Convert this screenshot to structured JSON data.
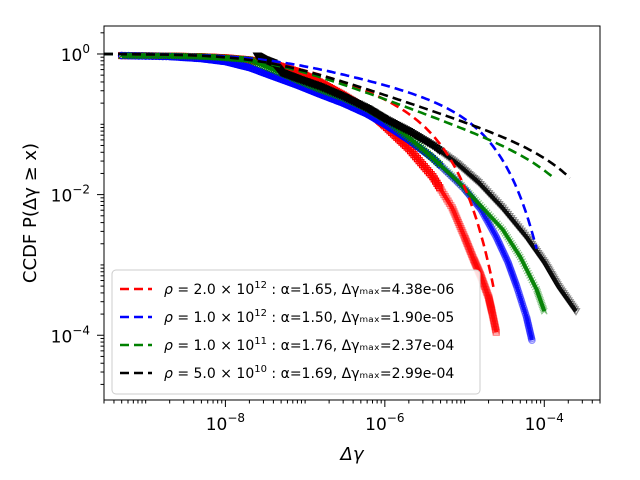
{
  "chart_data": {
    "type": "scatter",
    "title": "",
    "xlabel": "Δγ",
    "ylabel": "CCDF  P(Δγ ≥ x)",
    "xscale": "log",
    "yscale": "log",
    "xlim": [
      3e-10,
      0.0005
    ],
    "ylim": [
      1.2e-05,
      2.5
    ],
    "xticks": [
      {
        "value": 1e-08,
        "base": "10",
        "exp": "−8"
      },
      {
        "value": 1e-06,
        "base": "10",
        "exp": "−6"
      },
      {
        "value": 0.0001,
        "base": "10",
        "exp": "−4"
      }
    ],
    "yticks": [
      {
        "value": 1,
        "label": "10",
        "exp": "0"
      },
      {
        "value": 0.01,
        "label": "10",
        "exp": "−2"
      },
      {
        "value": 0.0001,
        "label": "10",
        "exp": "−4"
      }
    ],
    "legend_position": "lower-left",
    "series": [
      {
        "name": "red",
        "color": "#ff0000",
        "marker": "square",
        "legend": {
          "rho_mant": "2.0",
          "rho_exp": "12",
          "alpha": "α=1.65",
          "dmax": "Δγₘₐₓ=4.38e-06"
        },
        "fit": {
          "alpha": 1.65,
          "xmax": 4.38e-06,
          "xend": 2.3e-05
        },
        "points": [
          [
            5e-10,
            0.95
          ],
          [
            2e-09,
            0.93
          ],
          [
            5e-09,
            0.91
          ],
          [
            1e-08,
            0.88
          ],
          [
            2e-08,
            0.82
          ],
          [
            4e-08,
            0.72
          ],
          [
            8e-08,
            0.56
          ],
          [
            1.5e-07,
            0.4
          ],
          [
            3e-07,
            0.26
          ],
          [
            6e-07,
            0.16
          ],
          [
            1e-06,
            0.095
          ],
          [
            2e-06,
            0.045
          ],
          [
            4e-06,
            0.018
          ],
          [
            7e-06,
            0.0065
          ],
          [
            1e-05,
            0.0025
          ],
          [
            1.3e-05,
            0.0012
          ],
          [
            1.6e-05,
            0.0007
          ],
          [
            2e-05,
            0.00035
          ],
          [
            2.2e-05,
            0.00022
          ],
          [
            2.5e-05,
            0.00011
          ]
        ]
      },
      {
        "name": "blue",
        "color": "#0000ff",
        "marker": "circle",
        "legend": {
          "rho_mant": "1.0",
          "rho_exp": "12",
          "alpha": "α=1.50",
          "dmax": "Δγₘₐₓ=1.90e-05"
        },
        "fit": {
          "alpha": 1.5,
          "xmax": 1.9e-05,
          "xend": 8e-05
        },
        "points": [
          [
            5e-10,
            0.95
          ],
          [
            2e-09,
            0.92
          ],
          [
            5e-09,
            0.86
          ],
          [
            1e-08,
            0.78
          ],
          [
            2e-08,
            0.64
          ],
          [
            4e-08,
            0.48
          ],
          [
            8e-08,
            0.36
          ],
          [
            1.5e-07,
            0.27
          ],
          [
            3e-07,
            0.2
          ],
          [
            6e-07,
            0.14
          ],
          [
            1e-06,
            0.1
          ],
          [
            2e-06,
            0.06
          ],
          [
            4e-06,
            0.033
          ],
          [
            1e-05,
            0.012
          ],
          [
            1.6e-05,
            0.0062
          ],
          [
            2.5e-05,
            0.0025
          ],
          [
            3.5e-05,
            0.0011
          ],
          [
            4.5e-05,
            0.0005
          ],
          [
            6e-05,
            0.00018
          ],
          [
            7e-05,
            8.5e-05
          ]
        ]
      },
      {
        "name": "green",
        "color": "#008000",
        "marker": "x",
        "legend": {
          "rho_mant": "1.0",
          "rho_exp": "11",
          "alpha": "α=1.76",
          "dmax": "Δγₘₐₓ=2.37e-04"
        },
        "fit": {
          "alpha": 1.76,
          "xmax": 0.000237,
          "xend": 0.00013
        },
        "points": [
          [
            5e-10,
            0.95
          ],
          [
            2e-09,
            0.94
          ],
          [
            5e-09,
            0.92
          ],
          [
            1e-08,
            0.88
          ],
          [
            2e-08,
            0.83
          ],
          [
            4e-08,
            0.6
          ],
          [
            8e-08,
            0.43
          ],
          [
            1.5e-07,
            0.32
          ],
          [
            3e-07,
            0.24
          ],
          [
            6e-07,
            0.17
          ],
          [
            1e-06,
            0.12
          ],
          [
            2e-06,
            0.065
          ],
          [
            4e-06,
            0.033
          ],
          [
            8e-06,
            0.016
          ],
          [
            1.5e-05,
            0.0075
          ],
          [
            3e-05,
            0.0032
          ],
          [
            5e-05,
            0.0013
          ],
          [
            8e-05,
            0.00045
          ],
          [
            0.0001,
            0.00022
          ]
        ]
      },
      {
        "name": "black",
        "color": "#000000",
        "marker": "triangle",
        "legend": {
          "rho_mant": "5.0",
          "rho_exp": "10",
          "alpha": "α=1.69",
          "dmax": "Δγₘₐₓ=2.99e-04"
        },
        "fit": {
          "alpha": 1.69,
          "xmax": 0.000299,
          "xend": 0.00021
        },
        "points": [
          [
            2.5e-08,
            0.95
          ],
          [
            3e-08,
            0.85
          ],
          [
            4e-08,
            0.75
          ],
          [
            5e-08,
            0.55
          ],
          [
            8e-08,
            0.45
          ],
          [
            1.5e-07,
            0.35
          ],
          [
            3e-07,
            0.25
          ],
          [
            6e-07,
            0.17
          ],
          [
            1e-06,
            0.12
          ],
          [
            2e-06,
            0.08
          ],
          [
            4e-06,
            0.05
          ],
          [
            8e-06,
            0.028
          ],
          [
            1.5e-05,
            0.015
          ],
          [
            3e-05,
            0.0065
          ],
          [
            6e-05,
            0.0025
          ],
          [
            0.0001,
            0.0011
          ],
          [
            0.00015,
            0.0005
          ],
          [
            0.00025,
            0.00022
          ]
        ]
      }
    ]
  }
}
